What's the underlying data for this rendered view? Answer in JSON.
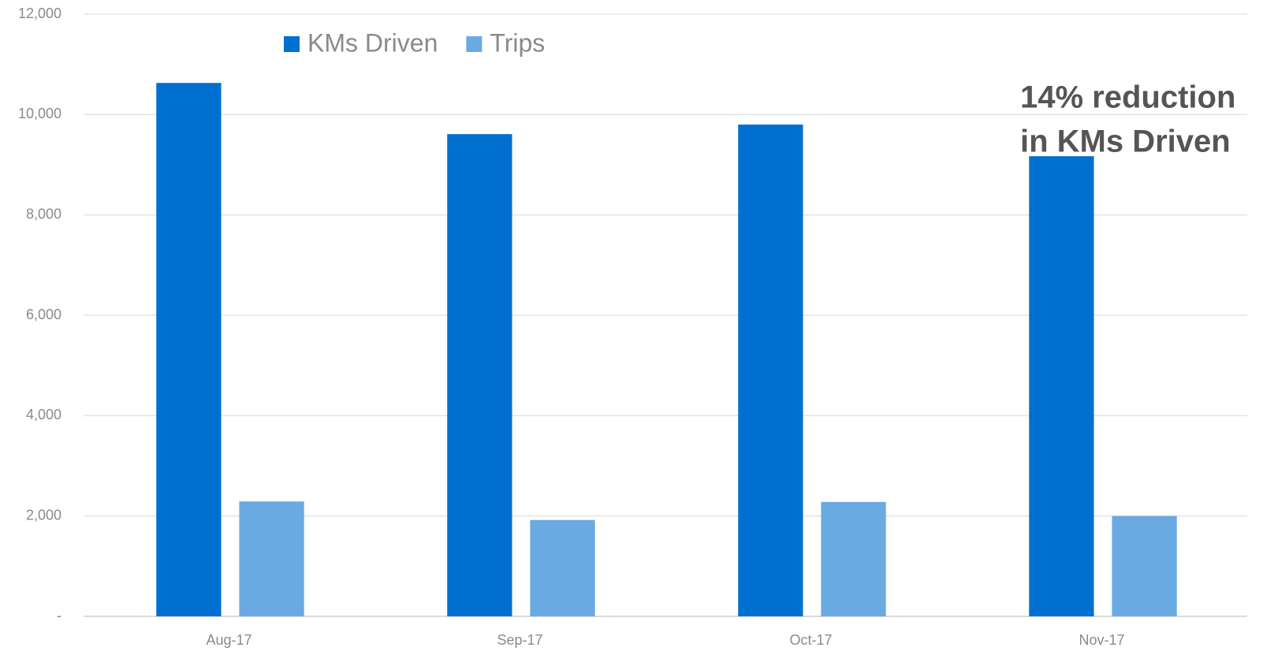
{
  "chart_data": {
    "type": "bar",
    "categories": [
      "Aug-17",
      "Sep-17",
      "Oct-17",
      "Nov-17"
    ],
    "series": [
      {
        "name": "KMs Driven",
        "color": "#0070d0",
        "values": [
          10630,
          9610,
          9800,
          9170
        ]
      },
      {
        "name": "Trips",
        "color": "#6aaae2",
        "values": [
          2290,
          1920,
          2280,
          2000
        ]
      }
    ],
    "ylim": [
      0,
      12000
    ],
    "yticks": [
      {
        "value": 0,
        "label": "-"
      },
      {
        "value": 2000,
        "label": "2,000"
      },
      {
        "value": 4000,
        "label": "4,000"
      },
      {
        "value": 6000,
        "label": "6,000"
      },
      {
        "value": 8000,
        "label": "8,000"
      },
      {
        "value": 10000,
        "label": "10,000"
      },
      {
        "value": 12000,
        "label": "12,000"
      }
    ],
    "grid": true,
    "legend": "top",
    "annotation": [
      "14% reduction",
      "in KMs Driven"
    ]
  }
}
